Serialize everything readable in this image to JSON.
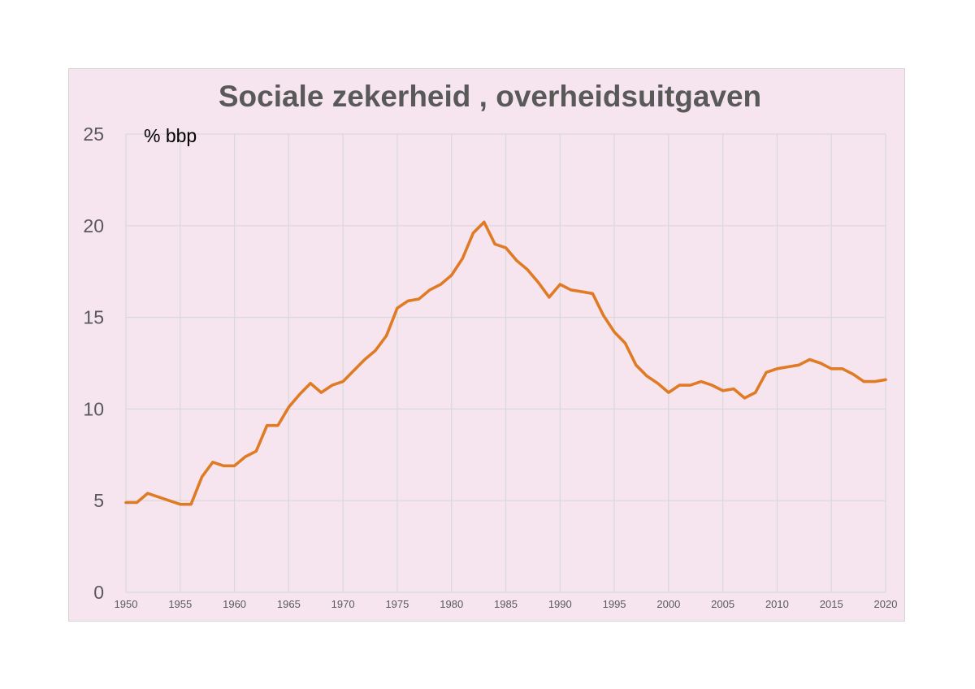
{
  "chart_data": {
    "type": "line",
    "title": "Sociale zekerheid , overheidsuitgaven",
    "unit_label": "% bbp",
    "xlabel": "",
    "ylabel": "",
    "xlim": [
      1950,
      2020
    ],
    "ylim": [
      0,
      25
    ],
    "y_ticks": [
      0,
      5,
      10,
      15,
      20,
      25
    ],
    "x_ticks": [
      1950,
      1955,
      1960,
      1965,
      1970,
      1975,
      1980,
      1985,
      1990,
      1995,
      2000,
      2005,
      2010,
      2015,
      2020
    ],
    "grid": true,
    "legend": "none",
    "colors": {
      "series": "#e07b25",
      "grid": "#d9d9d9",
      "background": "#f6e5ef",
      "text": "#595959"
    },
    "series": [
      {
        "x": [
          1950,
          1951,
          1952,
          1953,
          1954,
          1955,
          1956,
          1957,
          1958,
          1959,
          1960,
          1961,
          1962,
          1963,
          1964,
          1965,
          1966,
          1967,
          1968,
          1969,
          1970,
          1971,
          1972,
          1973,
          1974,
          1975,
          1976,
          1977,
          1978,
          1979,
          1980,
          1981,
          1982,
          1983,
          1984,
          1985,
          1986,
          1987,
          1988,
          1989,
          1990,
          1991,
          1992,
          1993,
          1994,
          1995,
          1996,
          1997,
          1998,
          1999,
          2000,
          2001,
          2002,
          2003,
          2004,
          2005,
          2006,
          2007,
          2008,
          2009,
          2010,
          2011,
          2012,
          2013,
          2014,
          2015,
          2016,
          2017,
          2018,
          2019,
          2020
        ],
        "values": [
          4.9,
          4.9,
          5.4,
          5.2,
          5.0,
          4.8,
          4.8,
          6.3,
          7.1,
          6.9,
          6.9,
          7.4,
          7.7,
          9.1,
          9.1,
          10.1,
          10.8,
          11.4,
          10.9,
          11.3,
          11.5,
          12.1,
          12.7,
          13.2,
          14.0,
          15.5,
          15.9,
          16.0,
          16.5,
          16.8,
          17.3,
          18.2,
          19.6,
          20.2,
          19.0,
          18.8,
          18.1,
          17.6,
          16.9,
          16.1,
          16.8,
          16.5,
          16.4,
          16.3,
          15.1,
          14.2,
          13.6,
          12.4,
          11.8,
          11.4,
          10.9,
          11.3,
          11.3,
          11.5,
          11.3,
          11.0,
          11.1,
          10.6,
          10.9,
          12.0,
          12.2,
          12.3,
          12.4,
          12.7,
          12.5,
          12.2,
          12.2,
          11.9,
          11.5,
          11.5,
          11.6
        ]
      }
    ]
  }
}
